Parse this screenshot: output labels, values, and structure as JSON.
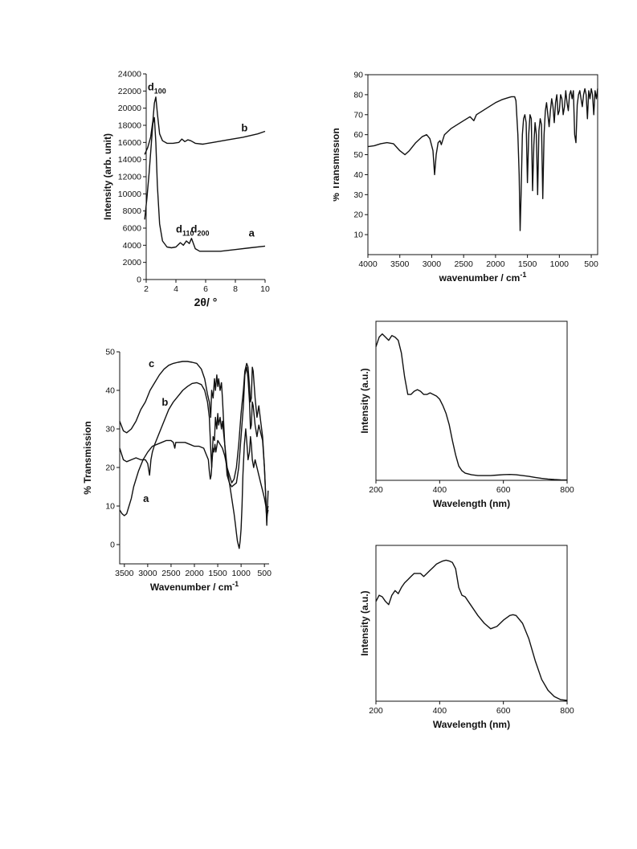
{
  "chart_data": [
    {
      "id": "xrd",
      "type": "line",
      "xlabel": "2θ/ °",
      "ylabel": "Intensity (arb. unit)",
      "xlim": [
        2,
        10
      ],
      "ylim": [
        0,
        24000
      ],
      "xticks": [
        2,
        4,
        6,
        8,
        10
      ],
      "yticks": [
        0,
        2000,
        4000,
        6000,
        8000,
        10000,
        12000,
        14000,
        16000,
        18000,
        20000,
        22000,
        24000
      ],
      "frame": "left-bottom",
      "annotations": [
        {
          "text": "d",
          "sub": "100",
          "x": 2.1,
          "y": 22100
        },
        {
          "text": "b",
          "x": 8.4,
          "y": 17300
        },
        {
          "text": "d",
          "sub": "110",
          "x": 4.0,
          "y": 5500
        },
        {
          "text": "d",
          "sub": "200",
          "x": 5.0,
          "y": 5500
        },
        {
          "text": "a",
          "x": 8.9,
          "y": 5000
        }
      ],
      "series": [
        {
          "x": [
            1.9,
            2.1,
            2.3,
            2.45,
            2.55,
            2.65,
            2.75,
            2.9,
            3.1,
            3.4,
            3.8,
            4.2,
            4.4,
            4.6,
            4.8,
            5.0,
            5.3,
            5.8,
            6.5,
            7.5,
            8.5,
            9.5,
            10
          ],
          "y": [
            14600,
            15400,
            16600,
            18500,
            20600,
            21300,
            19400,
            17000,
            16200,
            15900,
            15900,
            16000,
            16400,
            16100,
            16300,
            16200,
            15900,
            15800,
            16000,
            16300,
            16600,
            17000,
            17300
          ]
        },
        {
          "x": [
            1.9,
            2.05,
            2.2,
            2.35,
            2.45,
            2.55,
            2.65,
            2.75,
            2.9,
            3.1,
            3.4,
            3.7,
            4.0,
            4.3,
            4.5,
            4.7,
            4.9,
            5.05,
            5.3,
            5.6,
            6.0,
            7.0,
            8.0,
            9.0,
            10
          ],
          "y": [
            7000,
            9500,
            12500,
            16000,
            18200,
            18900,
            16000,
            11000,
            6500,
            4500,
            3800,
            3700,
            3800,
            4300,
            4000,
            4500,
            4200,
            4800,
            3600,
            3300,
            3300,
            3300,
            3500,
            3700,
            3900
          ]
        }
      ]
    },
    {
      "id": "ftir1",
      "type": "line",
      "xlabel": "wavenumber / cm",
      "xlabel_sup": "-1",
      "ylabel": "% Transmission",
      "xlim": [
        4000,
        400
      ],
      "ylim": [
        0,
        90
      ],
      "xticks": [
        4000,
        3500,
        3000,
        2500,
        2000,
        1500,
        1000,
        500
      ],
      "yticks": [
        10,
        20,
        30,
        40,
        50,
        60,
        70,
        80,
        90
      ],
      "frame": "box",
      "series": [
        {
          "x": [
            4000,
            3900,
            3800,
            3700,
            3600,
            3500,
            3420,
            3350,
            3250,
            3150,
            3080,
            3030,
            2980,
            2955,
            2930,
            2900,
            2870,
            2850,
            2800,
            2700,
            2600,
            2500,
            2400,
            2340,
            2300,
            2200,
            2100,
            2000,
            1900,
            1800,
            1750,
            1700,
            1680,
            1650,
            1630,
            1615,
            1600,
            1580,
            1560,
            1540,
            1520,
            1500,
            1480,
            1460,
            1440,
            1420,
            1400,
            1380,
            1360,
            1340,
            1320,
            1300,
            1280,
            1260,
            1240,
            1220,
            1200,
            1180,
            1160,
            1140,
            1120,
            1100,
            1080,
            1060,
            1040,
            1020,
            1000,
            980,
            960,
            940,
            920,
            900,
            880,
            860,
            840,
            820,
            800,
            780,
            760,
            740,
            720,
            700,
            680,
            660,
            640,
            620,
            600,
            580,
            560,
            540,
            520,
            500,
            480,
            460,
            440,
            420,
            400
          ],
          "y": [
            54,
            54.5,
            55.5,
            56,
            55.5,
            52,
            50,
            52,
            56,
            59,
            60,
            58,
            52,
            40,
            50,
            56,
            57,
            55,
            60,
            63,
            65,
            67,
            69,
            67,
            70,
            72,
            74,
            76,
            77.5,
            78.5,
            79,
            79,
            77,
            60,
            40,
            12,
            30,
            60,
            68,
            70,
            66,
            36,
            60,
            70,
            68,
            32,
            55,
            66,
            60,
            30,
            62,
            68,
            65,
            28,
            60,
            72,
            76,
            70,
            64,
            72,
            78,
            74,
            66,
            76,
            80,
            70,
            72,
            80,
            78,
            70,
            74,
            82,
            76,
            72,
            80,
            82,
            78,
            82,
            60,
            56,
            75,
            80,
            82,
            78,
            74,
            80,
            83,
            80,
            68,
            82,
            78,
            83,
            80,
            70,
            82,
            78,
            83
          ]
        }
      ]
    },
    {
      "id": "ftir2",
      "type": "line",
      "xlabel": "Wavenumber / cm",
      "xlabel_sup": "-1",
      "ylabel": "% Transmission",
      "xlim": [
        3600,
        400
      ],
      "ylim": [
        -5,
        50
      ],
      "xticks": [
        3500,
        3000,
        2500,
        2000,
        1500,
        1000,
        500
      ],
      "yticks": [
        0,
        10,
        20,
        30,
        40,
        50
      ],
      "frame": "left-bottom",
      "annotations": [
        {
          "text": "c",
          "x": 2980,
          "y": 46
        },
        {
          "text": "b",
          "x": 2700,
          "y": 36
        },
        {
          "text": "a",
          "x": 3100,
          "y": 11
        }
      ],
      "series": [
        {
          "x": [
            3600,
            3520,
            3450,
            3350,
            3250,
            3150,
            3050,
            2950,
            2850,
            2750,
            2650,
            2550,
            2450,
            2350,
            2250,
            2150,
            2050,
            1950,
            1850,
            1780,
            1720,
            1680,
            1650,
            1630,
            1600,
            1570,
            1550,
            1520,
            1500,
            1480,
            1450,
            1420,
            1400,
            1350,
            1300,
            1250,
            1200,
            1150,
            1100,
            1050,
            1000,
            950,
            920,
            880,
            850,
            820,
            800,
            780,
            760,
            740,
            700,
            660,
            620,
            580,
            540,
            500,
            470,
            450,
            420
          ],
          "y": [
            32,
            29.5,
            29,
            30,
            32,
            35,
            37,
            40,
            42,
            44,
            45.5,
            46.5,
            47,
            47.3,
            47.5,
            47.5,
            47.3,
            47,
            45.5,
            43,
            39,
            37,
            33,
            40,
            38,
            43,
            40,
            44,
            41,
            43,
            40,
            42,
            38,
            26,
            20,
            18,
            16,
            17,
            20,
            26,
            34,
            40,
            45,
            47,
            46,
            41,
            37,
            38,
            46,
            45,
            38,
            33,
            36,
            32,
            28,
            20,
            12,
            8,
            10
          ]
        },
        {
          "x": [
            3600,
            3520,
            3450,
            3350,
            3250,
            3150,
            3050,
            3000,
            2960,
            2930,
            2900,
            2850,
            2750,
            2650,
            2550,
            2450,
            2350,
            2250,
            2150,
            2050,
            1950,
            1850,
            1780,
            1720,
            1680,
            1650,
            1630,
            1600,
            1570,
            1550,
            1520,
            1500,
            1480,
            1450,
            1420,
            1400,
            1350,
            1300,
            1250,
            1200,
            1150,
            1100,
            1050,
            1000,
            950,
            920,
            880,
            850,
            820,
            800,
            780,
            760,
            740,
            700,
            660,
            620,
            580,
            540,
            500,
            470,
            450,
            420
          ],
          "y": [
            25,
            22,
            21.5,
            22,
            22.5,
            22,
            22,
            21,
            18,
            22,
            24,
            26,
            29,
            32,
            35,
            37,
            38.5,
            40,
            41,
            41.8,
            42,
            41.5,
            40,
            37,
            33,
            25,
            20,
            28,
            27,
            33,
            30,
            34,
            31,
            33,
            30,
            32,
            26,
            18,
            16,
            15,
            15.5,
            16,
            20,
            28,
            36,
            44,
            46,
            43,
            37,
            30,
            31,
            37,
            36,
            31,
            28,
            31,
            29,
            27,
            20,
            12,
            5,
            14
          ]
        },
        {
          "x": [
            3600,
            3550,
            3500,
            3450,
            3400,
            3350,
            3300,
            3200,
            3100,
            3000,
            2900,
            2800,
            2700,
            2600,
            2500,
            2450,
            2420,
            2400,
            2300,
            2200,
            2100,
            2000,
            1900,
            1800,
            1750,
            1700,
            1680,
            1660,
            1640,
            1620,
            1600,
            1580,
            1560,
            1540,
            1500,
            1450,
            1400,
            1350,
            1300,
            1250,
            1200,
            1150,
            1120,
            1100,
            1080,
            1060,
            1040,
            1020,
            1000,
            980,
            960,
            930,
            900,
            880,
            850,
            820,
            800,
            780,
            760,
            730,
            700,
            660,
            620,
            580,
            540,
            500,
            470,
            450,
            420
          ],
          "y": [
            9,
            8,
            7.5,
            8,
            10,
            12,
            15,
            19,
            22,
            24,
            25.5,
            26,
            26.5,
            27,
            27,
            26.5,
            25,
            26.5,
            26.5,
            26.5,
            26,
            25.5,
            25.5,
            25,
            23.5,
            22,
            19,
            17,
            18,
            22,
            25,
            24,
            26,
            24,
            27,
            26,
            25,
            23,
            20,
            16,
            12,
            8,
            5,
            3,
            1,
            0,
            -1,
            1,
            4,
            10,
            18,
            26,
            30,
            27,
            22,
            24,
            28,
            26,
            22,
            20,
            22,
            20,
            18,
            16,
            14,
            12,
            10,
            7,
            9
          ]
        }
      ]
    },
    {
      "id": "uv1",
      "type": "line",
      "xlabel": "Wavelength (nm)",
      "ylabel": "Intensity (a.u.)",
      "xlim": [
        200,
        800
      ],
      "ylim": [
        0,
        1
      ],
      "xticks": [
        200,
        400,
        600,
        800
      ],
      "yticks": [],
      "frame": "box",
      "series": [
        {
          "x": [
            200,
            210,
            220,
            230,
            240,
            250,
            260,
            270,
            280,
            290,
            300,
            310,
            320,
            330,
            340,
            350,
            360,
            370,
            380,
            390,
            400,
            410,
            420,
            430,
            440,
            450,
            460,
            470,
            480,
            500,
            520,
            540,
            560,
            580,
            600,
            620,
            640,
            660,
            680,
            700,
            720,
            740,
            760,
            780,
            800
          ],
          "y": [
            0.84,
            0.9,
            0.92,
            0.9,
            0.88,
            0.91,
            0.9,
            0.88,
            0.8,
            0.65,
            0.54,
            0.54,
            0.56,
            0.57,
            0.56,
            0.54,
            0.54,
            0.55,
            0.54,
            0.53,
            0.51,
            0.47,
            0.42,
            0.35,
            0.25,
            0.16,
            0.09,
            0.06,
            0.045,
            0.035,
            0.03,
            0.03,
            0.03,
            0.033,
            0.036,
            0.037,
            0.035,
            0.03,
            0.025,
            0.018,
            0.012,
            0.008,
            0.005,
            0.003,
            0.002
          ]
        }
      ]
    },
    {
      "id": "uv2",
      "type": "line",
      "xlabel": "Wavelength (nm)",
      "ylabel": "Intensity (a.u.)",
      "xlim": [
        200,
        800
      ],
      "ylim": [
        0,
        1
      ],
      "xticks": [
        200,
        400,
        600,
        800
      ],
      "yticks": [],
      "frame": "box",
      "series": [
        {
          "x": [
            200,
            210,
            220,
            230,
            240,
            250,
            260,
            270,
            280,
            290,
            300,
            310,
            320,
            330,
            340,
            350,
            360,
            370,
            380,
            390,
            400,
            410,
            420,
            430,
            440,
            450,
            460,
            470,
            480,
            490,
            500,
            520,
            540,
            560,
            580,
            600,
            620,
            630,
            640,
            660,
            680,
            700,
            720,
            740,
            760,
            780,
            800
          ],
          "y": [
            0.64,
            0.68,
            0.67,
            0.64,
            0.62,
            0.68,
            0.71,
            0.69,
            0.73,
            0.76,
            0.78,
            0.8,
            0.82,
            0.82,
            0.82,
            0.8,
            0.82,
            0.84,
            0.86,
            0.88,
            0.89,
            0.9,
            0.905,
            0.9,
            0.89,
            0.85,
            0.73,
            0.68,
            0.67,
            0.64,
            0.61,
            0.55,
            0.5,
            0.465,
            0.48,
            0.52,
            0.55,
            0.555,
            0.55,
            0.5,
            0.4,
            0.26,
            0.14,
            0.07,
            0.03,
            0.01,
            0.005
          ]
        }
      ]
    }
  ]
}
